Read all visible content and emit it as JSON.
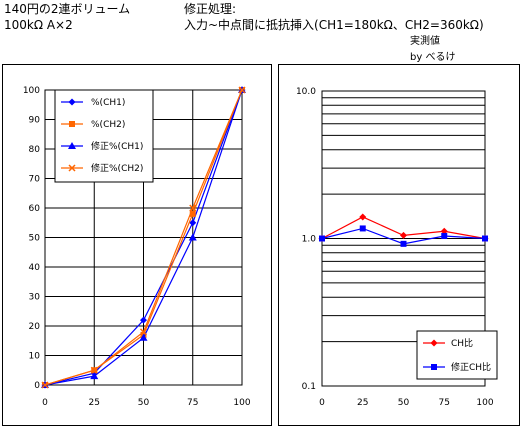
{
  "header": {
    "line1": "140円の2連ボリューム",
    "line2": "100kΩ A×2",
    "line3": "修正処理:",
    "line4": "入力~中点間に抵抗挿入(CH1=180kΩ、CH2=360kΩ)",
    "line5": "実測値",
    "line6": "by べるけ"
  },
  "chart_data": [
    {
      "type": "line",
      "x": [
        0,
        25,
        50,
        75,
        100
      ],
      "xlim": [
        0,
        100
      ],
      "ylim": [
        0,
        100
      ],
      "xticks": [
        "0",
        "25",
        "50",
        "75",
        "100"
      ],
      "yticks": [
        "0",
        "10",
        "20",
        "30",
        "40",
        "50",
        "60",
        "70",
        "80",
        "90",
        "100"
      ],
      "grid": true,
      "legend_position": "top-left",
      "series": [
        {
          "name": "%(CH1)",
          "values": [
            0,
            4,
            22,
            55,
            100
          ],
          "color": "#0000ff",
          "marker": "diamond"
        },
        {
          "name": "%(CH2)",
          "values": [
            0,
            5,
            17,
            58,
            100
          ],
          "color": "#ff6600",
          "marker": "square"
        },
        {
          "name": "修正%(CH1)",
          "values": [
            0,
            3,
            16,
            50,
            100
          ],
          "color": "#0000ff",
          "marker": "triangle"
        },
        {
          "name": "修正%(CH2)",
          "values": [
            0,
            5,
            18,
            60,
            100
          ],
          "color": "#ff6600",
          "marker": "x"
        }
      ]
    },
    {
      "type": "line",
      "x": [
        0,
        25,
        50,
        75,
        100
      ],
      "xlim": [
        0,
        100
      ],
      "ylim": [
        0.1,
        10
      ],
      "yscale": "log",
      "xticks": [
        "0",
        "25",
        "50",
        "75",
        "100"
      ],
      "yticks": [
        "0.1",
        "1.0",
        "10.0"
      ],
      "grid": true,
      "legend_position": "bottom-right",
      "series": [
        {
          "name": "CH比",
          "values": [
            1.0,
            1.4,
            1.05,
            1.12,
            1.0
          ],
          "color": "#ff0000",
          "marker": "diamond"
        },
        {
          "name": "修正CH比",
          "values": [
            1.0,
            1.17,
            0.92,
            1.04,
            1.0
          ],
          "color": "#0000ff",
          "marker": "square"
        }
      ]
    }
  ]
}
